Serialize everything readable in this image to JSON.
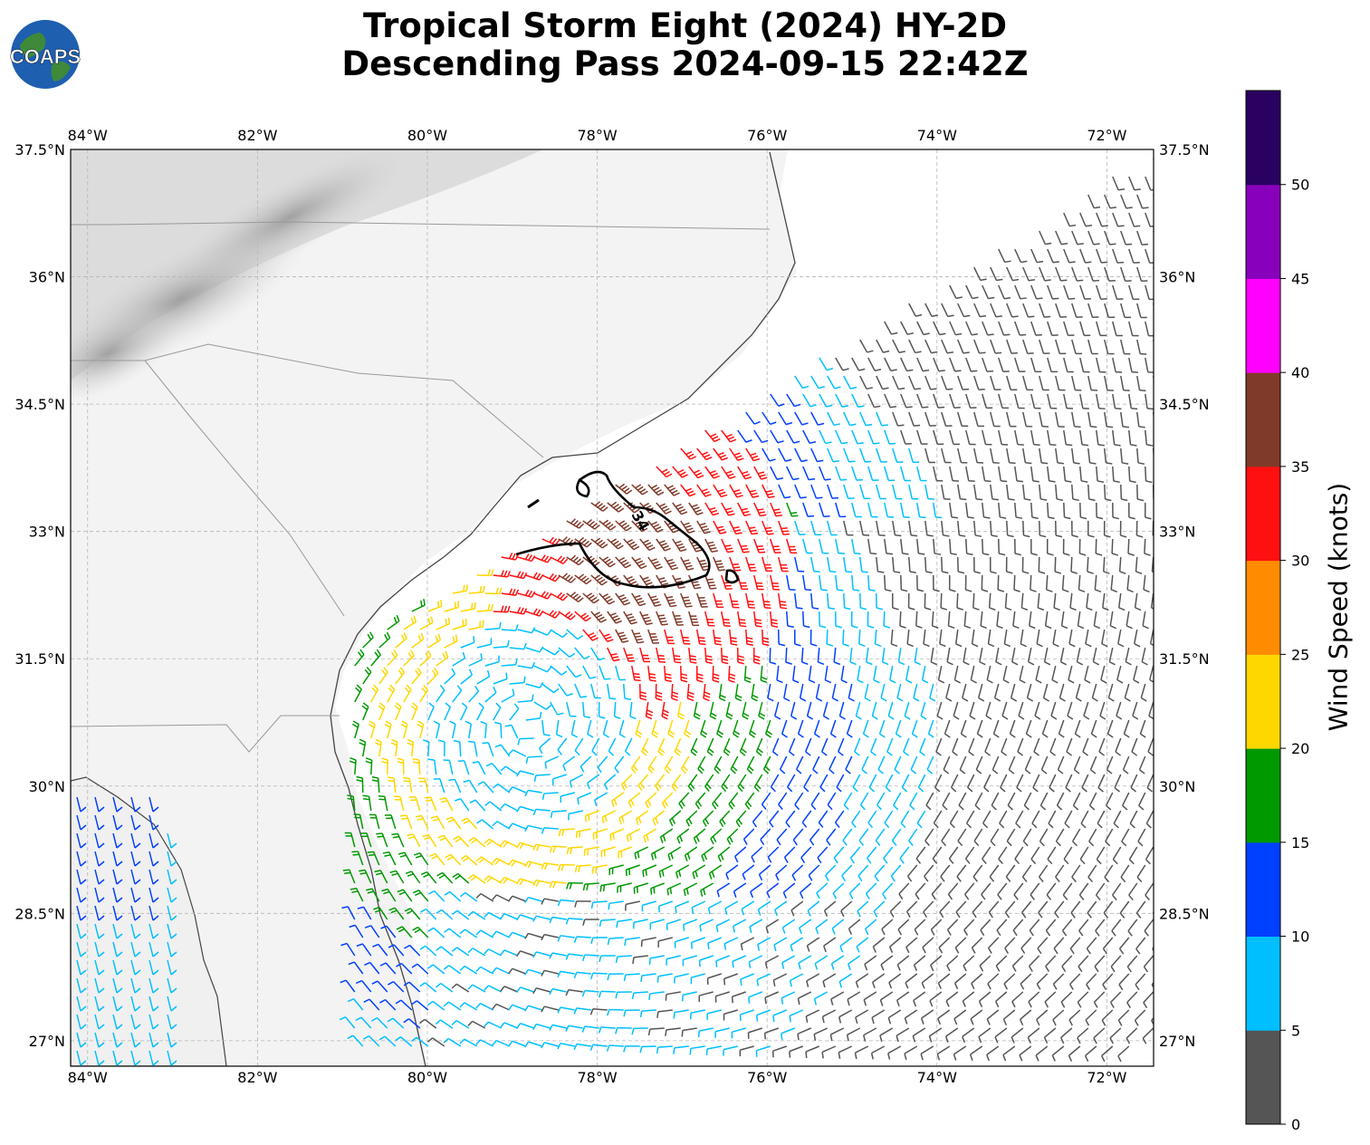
{
  "title_line1": "Tropical Storm Eight (2024) HY-2D",
  "title_line2": "Descending Pass 2024-09-15 22:42Z",
  "logo_text": "COAPS",
  "map": {
    "lon_labels": [
      "84°W",
      "82°W",
      "80°W",
      "78°W",
      "76°W",
      "74°W",
      "72°W"
    ],
    "lat_labels": [
      "37.5°N",
      "36°N",
      "34.5°N",
      "33°N",
      "31.5°N",
      "30°N",
      "28.5°N",
      "27°N"
    ],
    "contour_label": "34"
  },
  "colorbar": {
    "label": "Wind Speed (knots)",
    "ticks": [
      "0",
      "5",
      "10",
      "15",
      "20",
      "25",
      "30",
      "35",
      "40",
      "45",
      "50"
    ],
    "colors": [
      "#555555",
      "#00bfff",
      "#0040ff",
      "#009900",
      "#ffd700",
      "#ff8c00",
      "#ff1010",
      "#803a2a",
      "#ff00ff",
      "#8800bb",
      "#2a0060"
    ]
  },
  "storm_center": {
    "lon": -78.8,
    "lat": 30.7
  }
}
